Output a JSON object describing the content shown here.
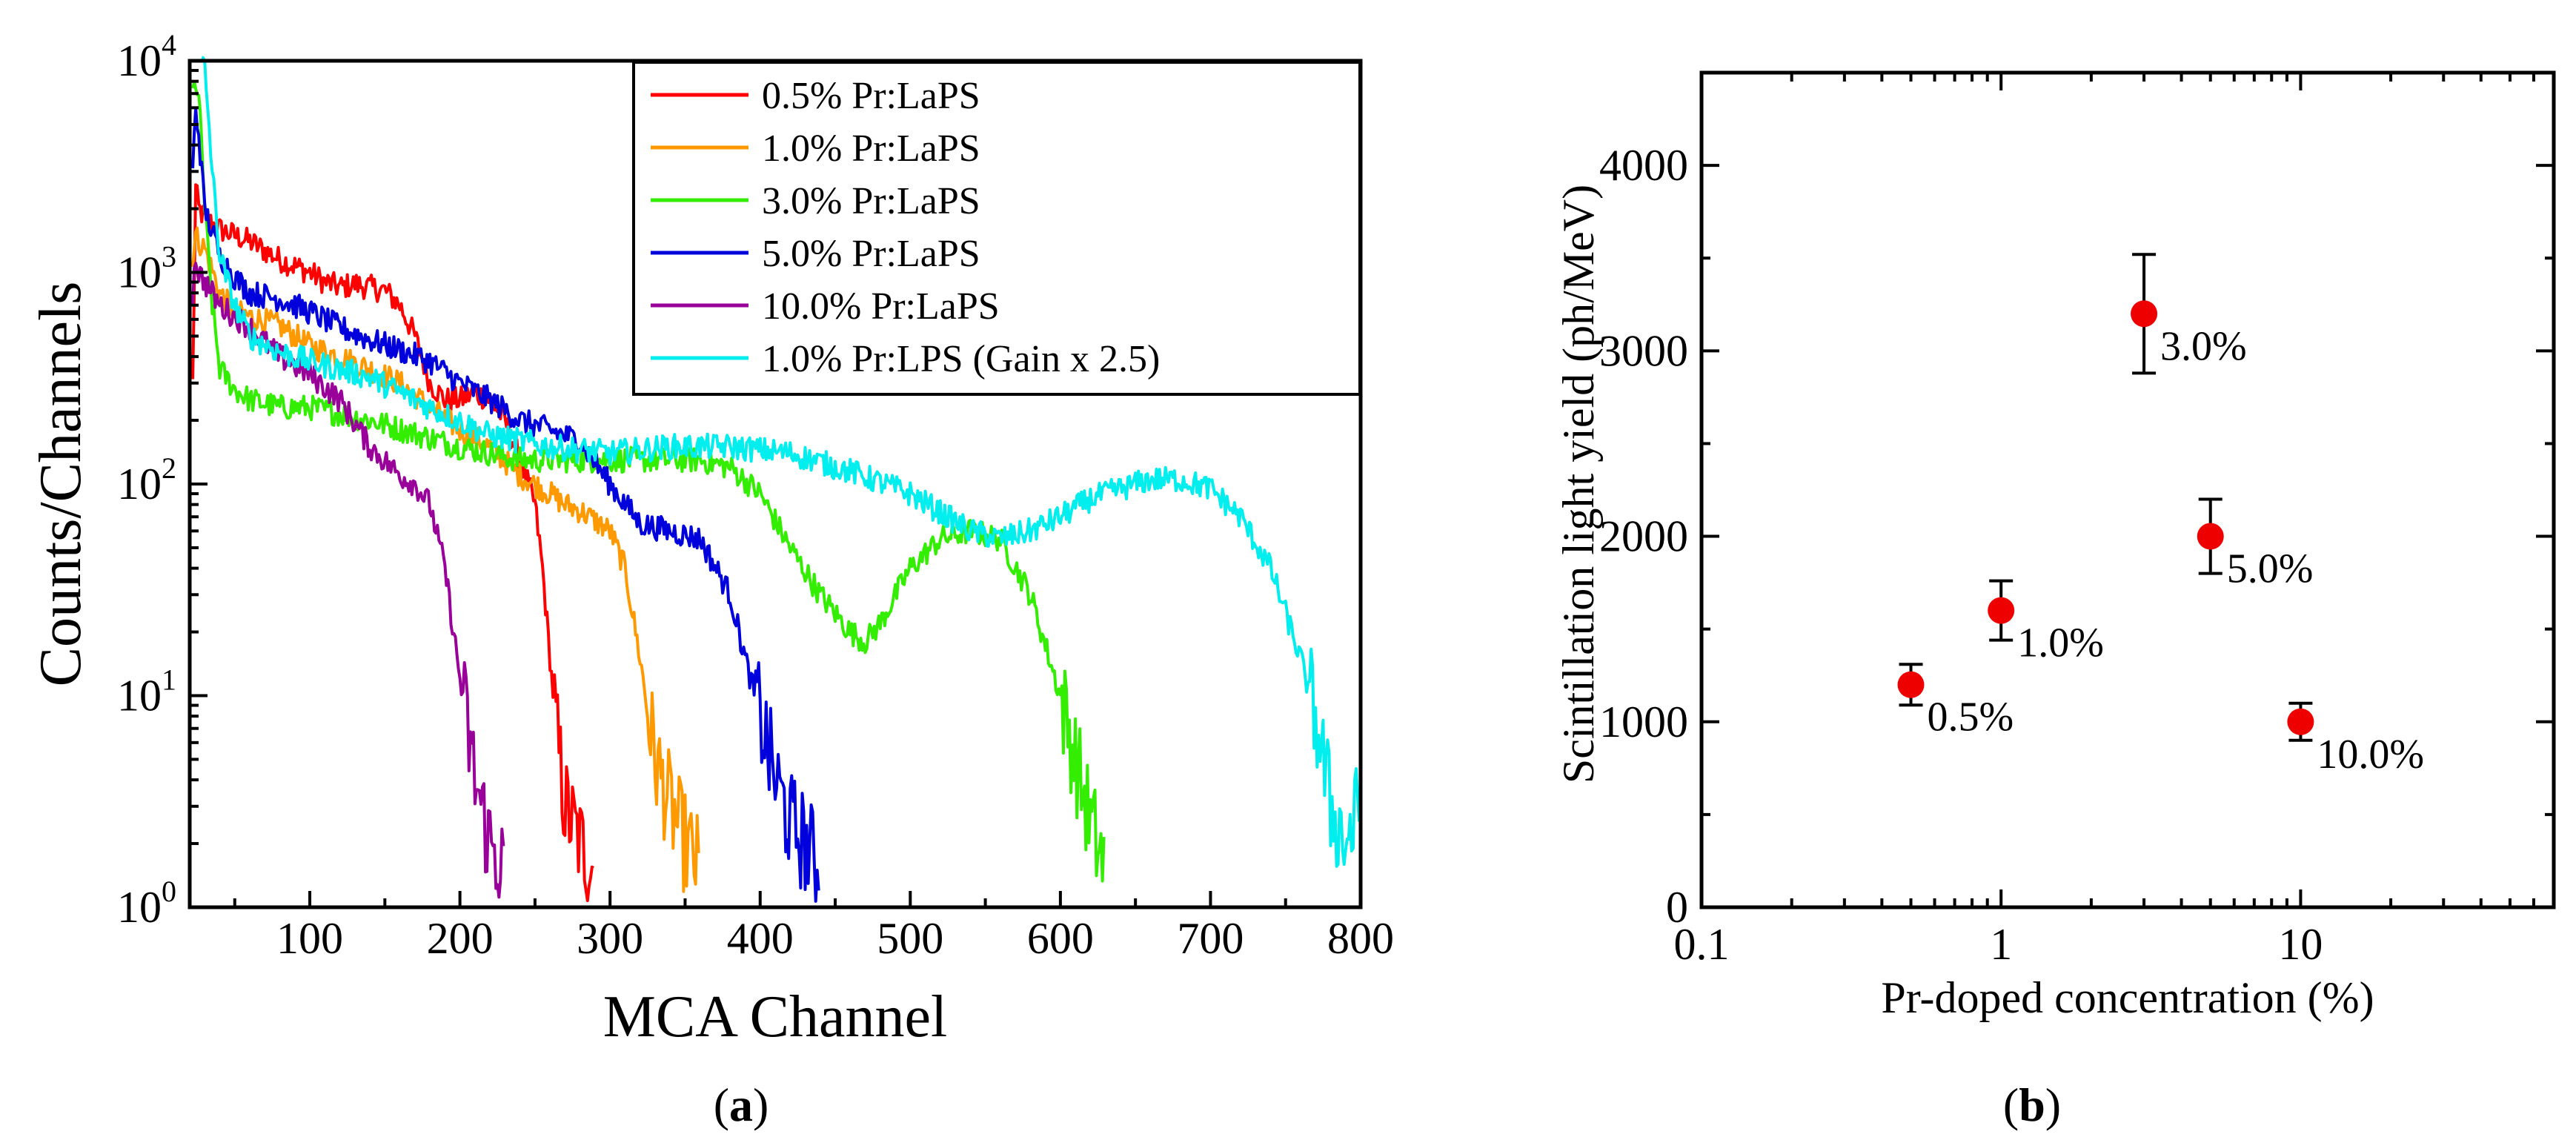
{
  "panels": {
    "a": {
      "label": "a"
    },
    "b": {
      "label": "b"
    }
  },
  "chart_data": [
    {
      "type": "line",
      "xlabel": "MCA Channel",
      "ylabel": "Counts/Channels",
      "xlim": [
        20,
        800
      ],
      "ylim": [
        1,
        10000
      ],
      "yscale": "log",
      "xticks": [
        "100",
        "200",
        "300",
        "400",
        "500",
        "600",
        "700",
        "800"
      ],
      "yticks": [
        {
          "base": "10",
          "exp": "0"
        },
        {
          "base": "10",
          "exp": "1"
        },
        {
          "base": "10",
          "exp": "2"
        },
        {
          "base": "10",
          "exp": "3"
        },
        {
          "base": "10",
          "exp": "4"
        }
      ],
      "legend": "top-right",
      "series": [
        {
          "name": "0.5% Pr:LaPS",
          "color": "#ff0000",
          "x": [
            22,
            24,
            26,
            30,
            40,
            60,
            80,
            100,
            110,
            120,
            130,
            140,
            150,
            160,
            170,
            180,
            190,
            200,
            210,
            220,
            230,
            240,
            250,
            255,
            260,
            265,
            270,
            280,
            290
          ],
          "y": [
            300,
            2500,
            2000,
            1800,
            1600,
            1400,
            1150,
            1000,
            900,
            850,
            880,
            850,
            820,
            700,
            500,
            300,
            250,
            250,
            270,
            250,
            200,
            130,
            80,
            40,
            15,
            6,
            3,
            2,
            1.5
          ]
        },
        {
          "name": "1.0% Pr:LaPS",
          "color": "#ff9900",
          "x": [
            22,
            24,
            26,
            30,
            40,
            50,
            60,
            80,
            100,
            120,
            140,
            160,
            180,
            200,
            220,
            240,
            260,
            270,
            280,
            300,
            310,
            320,
            330,
            340,
            350,
            360
          ],
          "y": [
            1200,
            1500,
            1400,
            1300,
            800,
            650,
            620,
            560,
            450,
            400,
            350,
            300,
            230,
            180,
            150,
            110,
            90,
            80,
            75,
            60,
            40,
            15,
            5,
            3,
            2,
            1.5
          ]
        },
        {
          "name": "3.0% Pr:LaPS",
          "color": "#33ee00",
          "x": [
            22,
            24,
            26,
            28,
            30,
            35,
            40,
            50,
            60,
            80,
            100,
            140,
            200,
            240,
            280,
            320,
            360,
            380,
            400,
            420,
            440,
            460,
            470,
            480,
            500,
            520,
            540,
            560,
            580,
            600,
            610,
            620,
            630
          ],
          "y": [
            7000,
            8000,
            6500,
            4000,
            2000,
            700,
            350,
            280,
            250,
            230,
            230,
            200,
            150,
            130,
            130,
            130,
            130,
            120,
            90,
            50,
            30,
            20,
            18,
            22,
            40,
            55,
            60,
            55,
            30,
            10,
            5,
            2.5,
            1.5
          ]
        },
        {
          "name": "5.0% Pr:LaPS",
          "color": "#0000dd",
          "x": [
            22,
            24,
            26,
            30,
            40,
            50,
            60,
            80,
            100,
            120,
            140,
            160,
            180,
            200,
            220,
            240,
            260,
            280,
            300,
            320,
            340,
            360,
            380,
            390,
            400,
            410,
            420,
            430,
            440
          ],
          "y": [
            3000,
            6000,
            4500,
            2000,
            1200,
            950,
            800,
            750,
            650,
            550,
            480,
            430,
            380,
            300,
            250,
            200,
            180,
            160,
            100,
            65,
            60,
            55,
            30,
            15,
            8,
            4,
            2.5,
            2,
            1.5
          ]
        },
        {
          "name": "10.0% Pr:LaPS",
          "color": "#990099",
          "x": [
            22,
            24,
            26,
            30,
            40,
            60,
            80,
            100,
            120,
            140,
            160,
            170,
            180,
            190,
            200,
            210,
            220,
            230
          ],
          "y": [
            800,
            1200,
            1000,
            900,
            700,
            550,
            400,
            330,
            250,
            150,
            110,
            100,
            80,
            40,
            12,
            4,
            2,
            1.5
          ]
        },
        {
          "name": "1.0% Pr:LPS (Gain x 2.5)",
          "color": "#00eeee",
          "x": [
            28,
            30,
            32,
            35,
            40,
            50,
            60,
            80,
            100,
            140,
            180,
            220,
            260,
            300,
            340,
            380,
            420,
            460,
            500,
            540,
            560,
            580,
            600,
            620,
            640,
            660,
            680,
            700,
            720,
            740,
            760,
            770,
            780,
            790,
            800
          ],
          "y": [
            10000,
            9000,
            6000,
            3000,
            1200,
            700,
            500,
            420,
            380,
            320,
            230,
            170,
            150,
            140,
            150,
            150,
            140,
            115,
            90,
            60,
            55,
            60,
            70,
            85,
            95,
            105,
            105,
            95,
            70,
            40,
            15,
            8,
            3,
            2,
            3
          ]
        }
      ]
    },
    {
      "type": "scatter",
      "xlabel": "Pr-doped concentration (%)",
      "ylabel": "Scintillation light yield (ph/MeV)",
      "xscale": "log",
      "xlim": [
        0.1,
        70
      ],
      "ylim": [
        0,
        4500
      ],
      "xticks": [
        "0.1",
        "1",
        "10"
      ],
      "yticks": [
        "0",
        "1000",
        "2000",
        "3000",
        "4000"
      ],
      "color": "#ee0000",
      "points": [
        {
          "x": 0.5,
          "y": 1200,
          "err": 110,
          "label": "0.5%"
        },
        {
          "x": 1.0,
          "y": 1600,
          "err": 160,
          "label": "1.0%"
        },
        {
          "x": 3.0,
          "y": 3200,
          "err": 320,
          "label": "3.0%"
        },
        {
          "x": 5.0,
          "y": 2000,
          "err": 200,
          "label": "5.0%"
        },
        {
          "x": 10.0,
          "y": 1000,
          "err": 100,
          "label": "10.0%"
        }
      ]
    }
  ]
}
